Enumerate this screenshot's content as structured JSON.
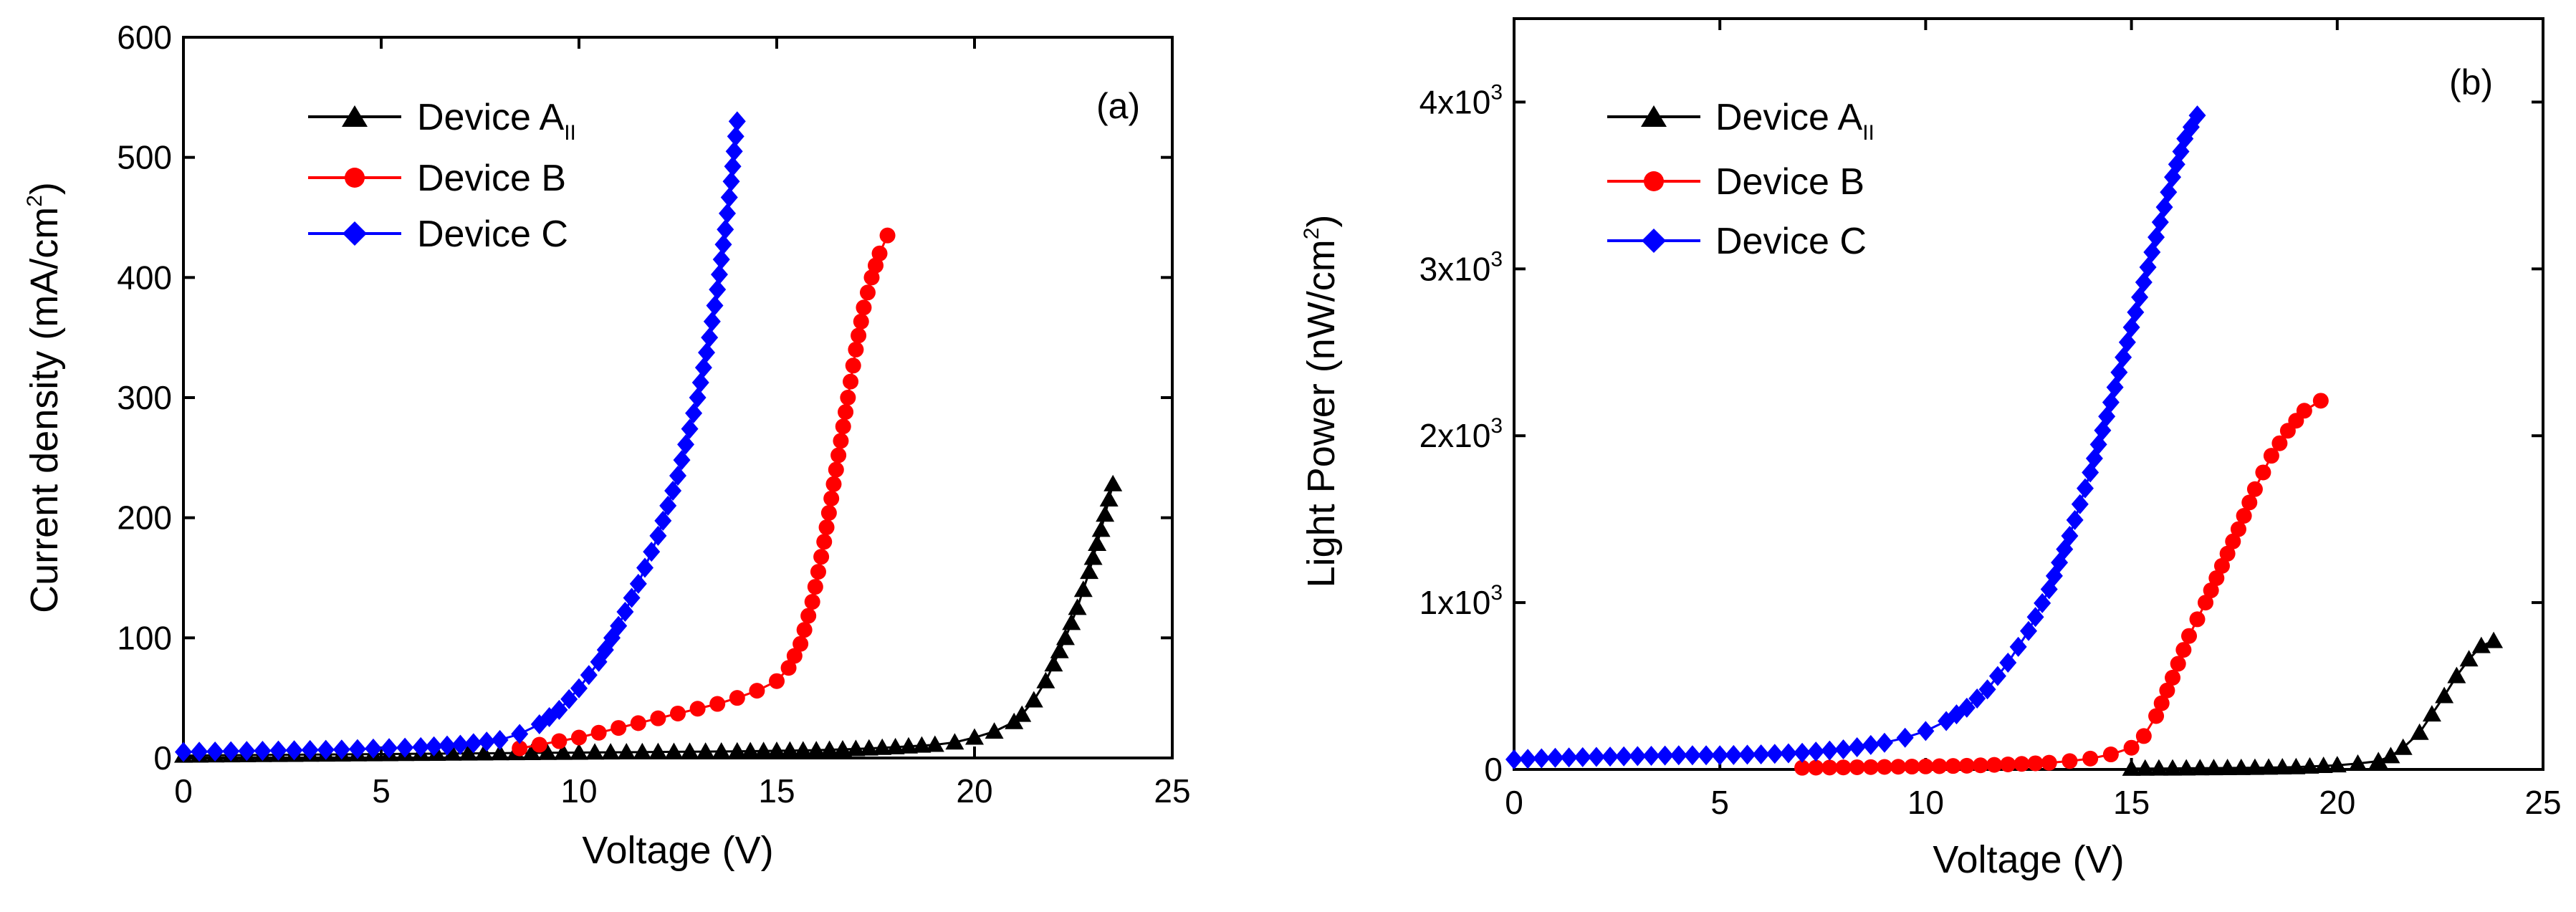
{
  "chart_data": [
    {
      "type": "line",
      "panel_label": "(a)",
      "xlabel": "Voltage (V)",
      "ylabel": "Current density (mA/cm",
      "ylabel_sup": "2",
      "ylabel_close": ")",
      "xlim": [
        0,
        25
      ],
      "ylim": [
        0,
        600
      ],
      "xticks": [
        0,
        5,
        10,
        15,
        20,
        25
      ],
      "yticks": [
        0,
        100,
        200,
        300,
        400,
        500,
        600
      ],
      "ytick_labels": [
        "0",
        "100",
        "200",
        "300",
        "400",
        "500",
        "600"
      ],
      "legend_position": "top-left",
      "series": [
        {
          "name": "Device A",
          "name_sub": "II",
          "color": "#000000",
          "marker": "triangle",
          "x": [
            0,
            2,
            4,
            6,
            8,
            10,
            12,
            14,
            15,
            16,
            17,
            18,
            19,
            19.5,
            20,
            20.5,
            21,
            21.2,
            21.5,
            21.8,
            22,
            22.3,
            22.6,
            22.9,
            23.2,
            23.5
          ],
          "y": [
            2,
            2.5,
            3,
            3.5,
            4,
            4.5,
            5,
            5.5,
            6,
            6.5,
            7.5,
            9,
            11,
            13,
            17,
            22,
            30,
            36,
            48,
            64,
            78,
            100,
            125,
            155,
            190,
            228
          ]
        },
        {
          "name": "Device B",
          "color": "#ff0000",
          "marker": "circle",
          "x": [
            8.5,
            9,
            9.5,
            10,
            10.5,
            11,
            11.5,
            12,
            12.5,
            13,
            13.5,
            14,
            14.5,
            15,
            15.3,
            15.6,
            15.9,
            16.2,
            16.5,
            16.8,
            17,
            17.2,
            17.4,
            17.6,
            17.8
          ],
          "y": [
            8,
            11,
            14,
            17,
            21,
            25,
            29,
            33,
            37,
            41,
            45,
            50,
            56,
            64,
            75,
            95,
            130,
            180,
            240,
            300,
            340,
            375,
            400,
            420,
            435
          ]
        },
        {
          "name": "Device C",
          "color": "#0000ff",
          "marker": "diamond",
          "x": [
            0,
            2,
            4,
            6,
            7,
            8,
            8.5,
            9,
            9.5,
            10,
            10.5,
            11,
            11.5,
            12,
            12.5,
            13,
            13.3,
            13.5,
            13.7,
            13.85,
            14
          ],
          "y": [
            5,
            6,
            7,
            9,
            11,
            15,
            20,
            28,
            40,
            58,
            80,
            110,
            145,
            185,
            235,
            300,
            350,
            390,
            440,
            480,
            530
          ]
        }
      ]
    },
    {
      "type": "line",
      "panel_label": "(b)",
      "xlabel": "Voltage (V)",
      "ylabel": "Light Power (nW/cm",
      "ylabel_sup": "2",
      "ylabel_close": ")",
      "xlim": [
        0,
        25
      ],
      "ylim": [
        0,
        4500
      ],
      "xticks": [
        0,
        5,
        10,
        15,
        20,
        25
      ],
      "yticks": [
        0,
        1000,
        2000,
        3000,
        4000
      ],
      "ytick_labels": [
        "0",
        "1x10",
        "2x10",
        "3x10",
        "4x10"
      ],
      "ytick_exponent": "3",
      "legend_position": "top-left",
      "series": [
        {
          "name": "Device A",
          "name_sub": "II",
          "color": "#000000",
          "marker": "triangle",
          "x": [
            15,
            16,
            17,
            18,
            19,
            20,
            20.5,
            21,
            21.3,
            21.6,
            22,
            22.3,
            22.6,
            22.9,
            23.2,
            23.5,
            23.8
          ],
          "y": [
            5,
            6,
            8,
            10,
            14,
            25,
            35,
            50,
            80,
            130,
            220,
            330,
            440,
            560,
            660,
            740,
            770
          ]
        },
        {
          "name": "Device B",
          "color": "#ff0000",
          "marker": "circle",
          "x": [
            7,
            8,
            9,
            10,
            11,
            12,
            13,
            13.5,
            14,
            14.5,
            15,
            15.3,
            15.6,
            16,
            16.4,
            16.8,
            17.2,
            17.6,
            18,
            18.4,
            18.8,
            19.2,
            19.6
          ],
          "y": [
            10,
            12,
            15,
            18,
            22,
            30,
            40,
            50,
            65,
            90,
            130,
            200,
            320,
            550,
            800,
            1000,
            1220,
            1440,
            1680,
            1880,
            2030,
            2150,
            2210
          ]
        },
        {
          "name": "Device C",
          "color": "#0000ff",
          "marker": "diamond",
          "x": [
            0,
            1,
            2,
            3,
            4,
            5,
            6,
            7,
            8,
            9,
            9.5,
            10,
            10.5,
            11,
            11.5,
            12,
            12.5,
            13,
            13.5,
            14,
            14.5,
            15,
            15.5,
            16,
            16.3,
            16.6
          ],
          "y": [
            60,
            70,
            75,
            80,
            85,
            85,
            90,
            100,
            120,
            160,
            190,
            230,
            290,
            370,
            480,
            640,
            830,
            1080,
            1400,
            1780,
            2200,
            2650,
            3100,
            3550,
            3780,
            3920
          ]
        }
      ]
    }
  ]
}
